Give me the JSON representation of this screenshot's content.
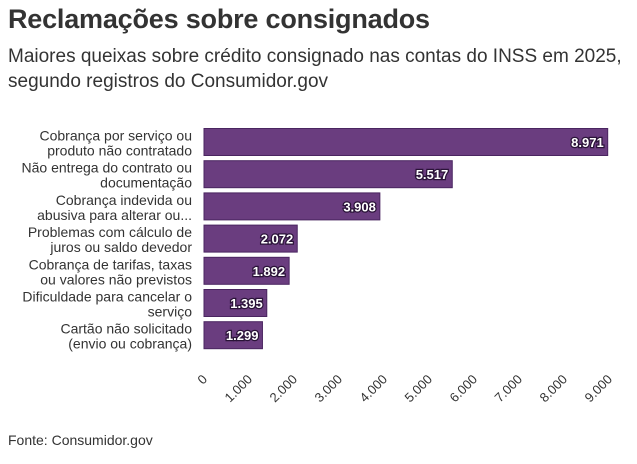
{
  "title": "Reclamações sobre consignados",
  "subtitle": "Maiores queixas sobre crédito consignado nas contas do INSS em 2025, segundo registros do Consumidor.gov",
  "source": "Fonte: Consumidor.gov",
  "colors": {
    "bar": "#6a3d7f",
    "bar_edge": "#4a2560",
    "text": "#333333"
  },
  "chart_data": {
    "type": "bar",
    "orientation": "horizontal",
    "categories": [
      [
        "Cobrança por serviço ou",
        "produto não contratado"
      ],
      [
        "Não entrega do contrato ou",
        "documentação"
      ],
      [
        "Cobrança indevida ou",
        "abusiva para alterar ou..."
      ],
      [
        "Problemas com cálculo de",
        "juros ou saldo devedor"
      ],
      [
        "Cobrança de tarifas, taxas",
        "ou valores não previstos"
      ],
      [
        "Dificuldade para cancelar o",
        "serviço"
      ],
      [
        "Cartão não solicitado",
        "(envio ou cobrança)"
      ]
    ],
    "values": [
      8971,
      5517,
      3908,
      2072,
      1892,
      1395,
      1299
    ],
    "value_labels": [
      "8.971",
      "5.517",
      "3.908",
      "2.072",
      "1.892",
      "1.395",
      "1.299"
    ],
    "xlim": [
      0,
      9000
    ],
    "ticks": [
      0,
      1000,
      2000,
      3000,
      4000,
      5000,
      6000,
      7000,
      8000,
      9000
    ],
    "tick_labels": [
      "0",
      "1.000",
      "2.000",
      "3.000",
      "4.000",
      "5.000",
      "6.000",
      "7.000",
      "8.000",
      "9.000"
    ],
    "grid": false
  }
}
